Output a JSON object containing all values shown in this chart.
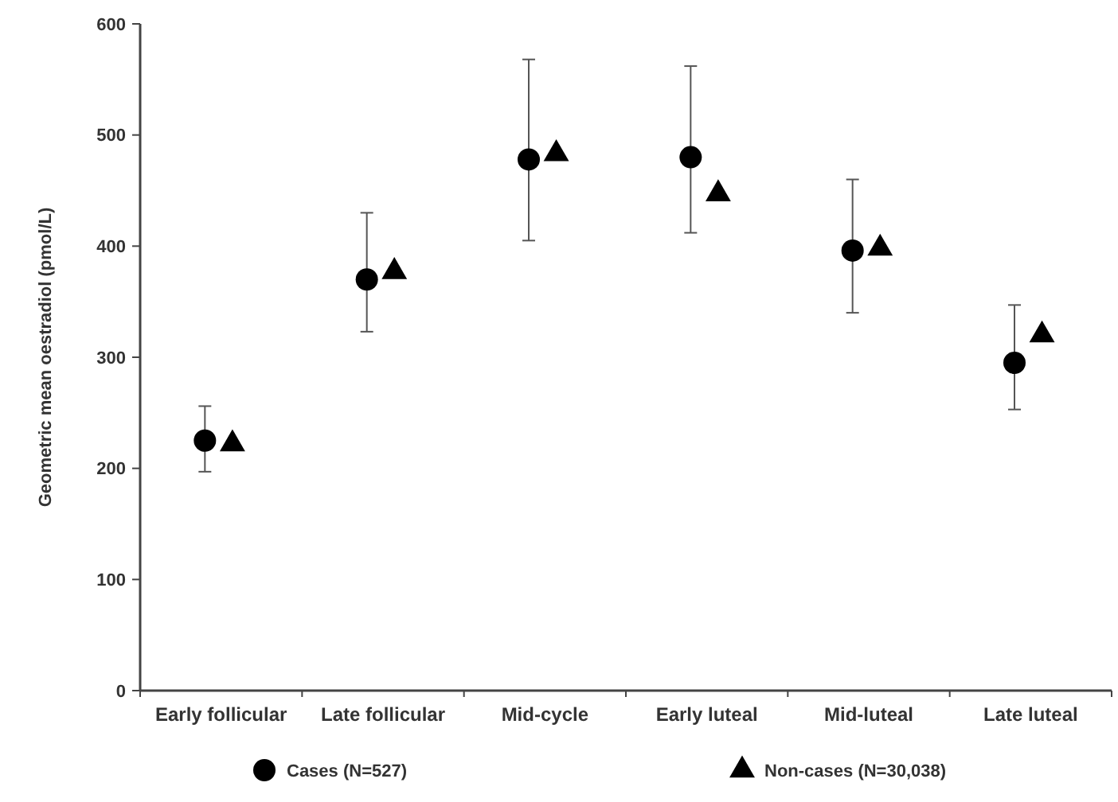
{
  "chart_data": {
    "type": "scatter",
    "ylabel": "Geometric mean oestradiol (pmol/L)",
    "categories": [
      "Early follicular",
      "Late follicular",
      "Mid-cycle",
      "Early luteal",
      "Mid-luteal",
      "Late luteal"
    ],
    "series": [
      {
        "name": "Cases (N=527)",
        "color": "#000000",
        "marker": "circle",
        "values": [
          225,
          370,
          478,
          480,
          396,
          295
        ],
        "errors": [
          [
            197,
            256
          ],
          [
            323,
            430
          ],
          [
            405,
            568
          ],
          [
            412,
            562
          ],
          [
            340,
            460
          ],
          [
            253,
            347
          ]
        ]
      },
      {
        "name": "Non-cases (N=30,038)",
        "color": "#000000",
        "marker": "triangle",
        "values": [
          222,
          377,
          483,
          447,
          398,
          320
        ]
      }
    ],
    "ylim": [
      0,
      600
    ],
    "yticks": [
      0,
      100,
      200,
      300,
      400,
      500,
      600
    ],
    "grid": false,
    "legend": "bottom"
  }
}
